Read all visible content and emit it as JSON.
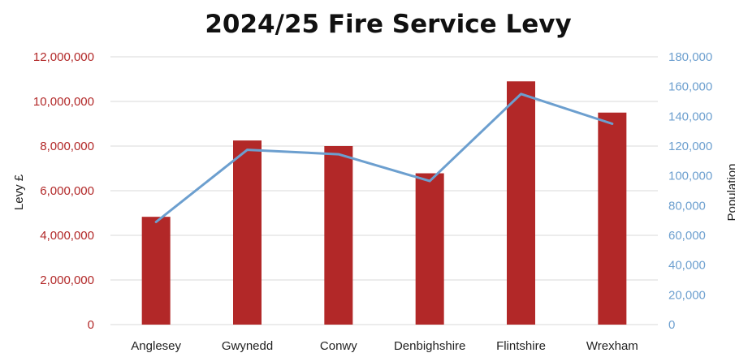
{
  "chart_data": {
    "type": "bar",
    "title": "2024/25 Fire Service Levy",
    "categories": [
      "Anglesey",
      "Gwynedd",
      "Conwy",
      "Denbighshire",
      "Flintshire",
      "Wrexham"
    ],
    "series": [
      {
        "name": "Levy £",
        "type": "bar",
        "axis": "left",
        "color": "#B22828",
        "values": [
          4830000,
          8250000,
          8000000,
          6780000,
          10900000,
          9500000
        ]
      },
      {
        "name": "Population",
        "type": "line",
        "axis": "right",
        "color": "#6C9FCF",
        "values": [
          69000,
          117500,
          114500,
          96500,
          155000,
          135000
        ]
      }
    ],
    "ylabel": "Levy £",
    "y2label": "Population",
    "ylim": [
      0,
      12000000
    ],
    "y2lim": [
      0,
      180000
    ],
    "yticks": [
      "0",
      "2,000,000",
      "4,000,000",
      "6,000,000",
      "8,000,000",
      "10,000,000",
      "12,000,000"
    ],
    "y2ticks": [
      "0",
      "20,000",
      "40,000",
      "60,000",
      "80,000",
      "100,000",
      "120,000",
      "140,000",
      "160,000",
      "180,000"
    ],
    "grid": true,
    "left_axis_color": "#B22828",
    "right_axis_color": "#6C9FCF",
    "grid_color": "#D9D9D9"
  }
}
